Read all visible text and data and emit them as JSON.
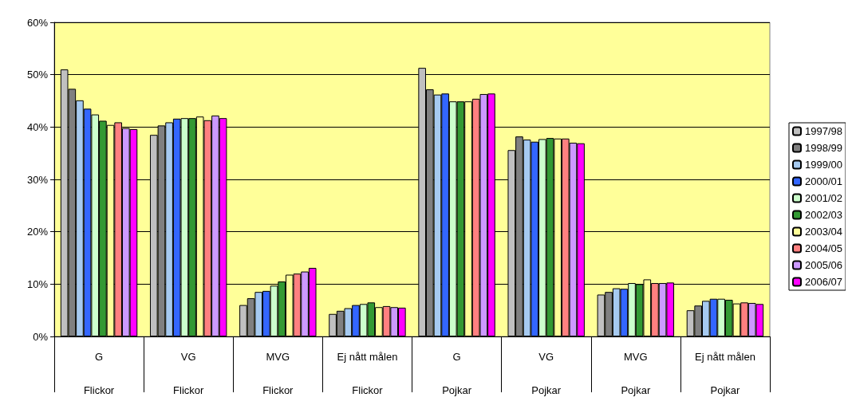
{
  "chart_data": {
    "type": "bar",
    "categories": [
      "G\nFlickor",
      "VG\nFlickor",
      "MVG\nFlickor",
      "Ej nått målen\nFlickor",
      "G\nPojkar",
      "VG\nPojkar",
      "MVG\nPojkar",
      "Ej nått målen\nPojkar"
    ],
    "series": [
      {
        "name": "1997/98",
        "color": "#c0c0c0",
        "values": [
          51.0,
          38.5,
          6.0,
          4.3,
          51.3,
          35.6,
          8.0,
          5.0
        ]
      },
      {
        "name": "1998/99",
        "color": "#808080",
        "values": [
          47.3,
          40.3,
          7.3,
          4.9,
          47.2,
          38.2,
          8.5,
          5.9
        ]
      },
      {
        "name": "1999/00",
        "color": "#a6caf0",
        "values": [
          45.1,
          40.9,
          8.5,
          5.4,
          46.2,
          37.6,
          9.2,
          6.8
        ]
      },
      {
        "name": "2000/01",
        "color": "#3366ff",
        "values": [
          43.5,
          41.6,
          8.7,
          6.0,
          46.4,
          37.2,
          9.1,
          7.2
        ]
      },
      {
        "name": "2001/02",
        "color": "#ccffcc",
        "values": [
          42.4,
          41.7,
          9.7,
          6.2,
          44.9,
          37.7,
          10.2,
          7.2
        ]
      },
      {
        "name": "2002/03",
        "color": "#339933",
        "values": [
          41.2,
          41.7,
          10.5,
          6.5,
          44.9,
          37.9,
          10.0,
          7.0
        ]
      },
      {
        "name": "2003/04",
        "color": "#ffff99",
        "values": [
          40.4,
          42.0,
          11.8,
          5.6,
          44.9,
          37.8,
          10.9,
          6.3
        ]
      },
      {
        "name": "2004/05",
        "color": "#ff8080",
        "values": [
          40.9,
          41.3,
          12.0,
          5.8,
          45.4,
          37.8,
          10.2,
          6.5
        ]
      },
      {
        "name": "2005/06",
        "color": "#cc99ff",
        "values": [
          39.8,
          42.2,
          12.4,
          5.6,
          46.3,
          37.0,
          10.2,
          6.4
        ]
      },
      {
        "name": "2006/07",
        "color": "#ff00ff",
        "values": [
          39.6,
          41.7,
          13.1,
          5.5,
          46.4,
          36.9,
          10.3,
          6.2
        ]
      }
    ],
    "ylim": [
      0,
      60
    ],
    "yticks": [
      {
        "value": 0,
        "label": "0%"
      },
      {
        "value": 10,
        "label": "10%"
      },
      {
        "value": 20,
        "label": "20%"
      },
      {
        "value": 30,
        "label": "30%"
      },
      {
        "value": 40,
        "label": "40%"
      },
      {
        "value": 50,
        "label": "50%"
      },
      {
        "value": 60,
        "label": "60%"
      }
    ],
    "grid": "y",
    "legend": "right"
  }
}
